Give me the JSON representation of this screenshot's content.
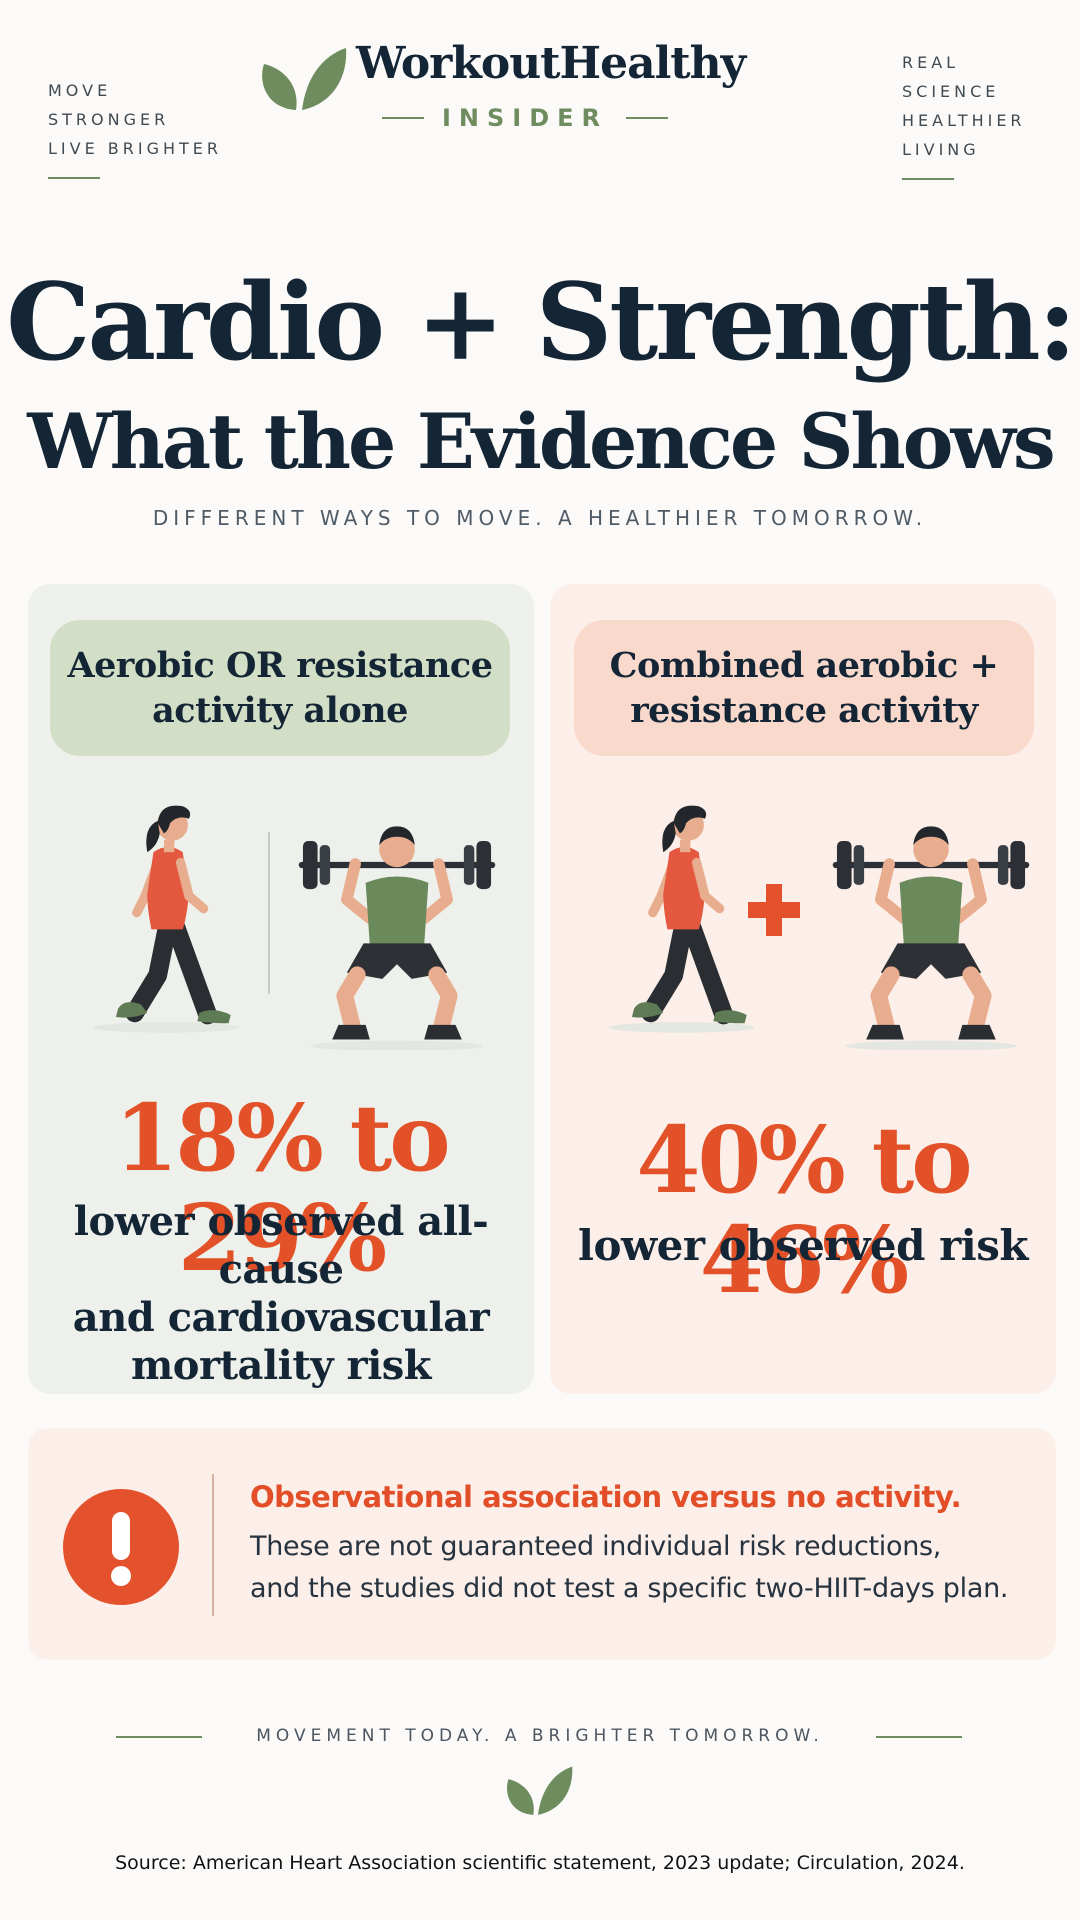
{
  "header": {
    "left_tags": [
      "MOVE",
      "STRONGER",
      "LIVE BRIGHTER"
    ],
    "right_tags": [
      "REAL",
      "SCIENCE",
      "HEALTHIER",
      "LIVING"
    ],
    "brand_title": "WorkoutHealthy",
    "brand_sub": "INSIDER",
    "logo_icon": "leaf-icon"
  },
  "hero": {
    "title_line1": "Cardio + Strength:",
    "title_line2": "What the Evidence Shows",
    "tagline": "DIFFERENT WAYS TO MOVE. A HEALTHIER TOMORROW."
  },
  "left_panel": {
    "pill_line1": "Aerobic OR resistance",
    "pill_line2": "activity alone",
    "stat": "18% to 29%",
    "desc_line1": "lower observed all-cause",
    "desc_line2": "and cardiovascular",
    "desc_line3": "mortality risk",
    "icons": [
      "walking-woman-icon",
      "squatting-man-icon"
    ]
  },
  "right_panel": {
    "pill_line1": "Combined aerobic +",
    "pill_line2": "resistance activity",
    "stat": "40% to 46%",
    "desc_line1": "lower observed risk",
    "plus_symbol": "+",
    "icons": [
      "walking-woman-icon",
      "plus-icon",
      "squatting-man-icon"
    ]
  },
  "warning": {
    "icon": "exclamation-icon",
    "title": "Observational association versus no activity.",
    "text_line1": "These are not guaranteed individual risk reductions,",
    "text_line2": "and the studies did not test a specific two-HIIT-days plan."
  },
  "footer": {
    "tagline": "MOVEMENT TODAY. A BRIGHTER TOMORROW.",
    "source": "Source: American Heart Association scientific statement, 2023 update; Circulation, 2024."
  },
  "colors": {
    "accent_orange": "#e25128",
    "brand_green": "#6f8c5e",
    "navy": "#142536",
    "panel_green": "#eef1eb",
    "panel_peach": "#fcefe9"
  }
}
